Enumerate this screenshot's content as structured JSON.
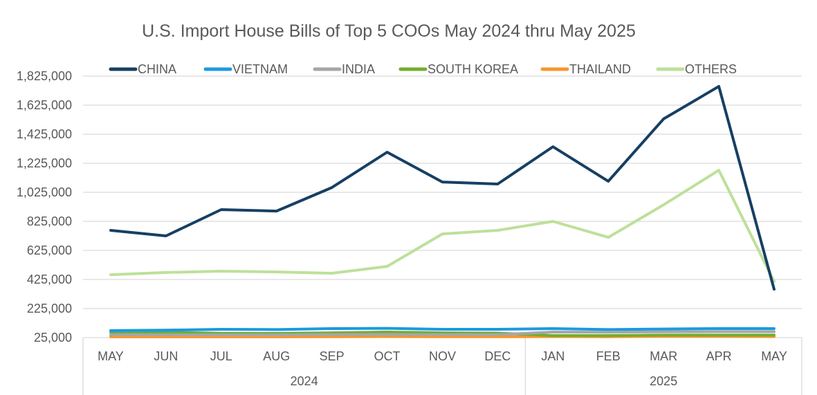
{
  "chart_data": {
    "type": "line",
    "title": "U.S. Import House Bills of Top 5 COOs May 2024 thru May 2025",
    "xlabel": "",
    "ylabel": "",
    "ylim": [
      25000,
      1825000
    ],
    "yticks": [
      25000,
      225000,
      425000,
      625000,
      825000,
      1025000,
      1225000,
      1425000,
      1625000,
      1825000
    ],
    "ytick_labels": [
      "25,000",
      "225,000",
      "425,000",
      "625,000",
      "825,000",
      "1,025,000",
      "1,225,000",
      "1,425,000",
      "1,625,000",
      "1,825,000"
    ],
    "grid": true,
    "legend_position": "top",
    "categories": [
      "MAY",
      "JUN",
      "JUL",
      "AUG",
      "SEP",
      "OCT",
      "NOV",
      "DEC",
      "JAN",
      "FEB",
      "MAR",
      "APR",
      "MAY"
    ],
    "category_groups": [
      {
        "label": "2024",
        "count": 8
      },
      {
        "label": "2025",
        "count": 5
      }
    ],
    "series": [
      {
        "name": "CHINA",
        "color": "#173f63",
        "values": [
          763000,
          725000,
          906000,
          896000,
          1058000,
          1301000,
          1096000,
          1082000,
          1339000,
          1101000,
          1530000,
          1754000,
          358000
        ]
      },
      {
        "name": "VIETNAM",
        "color": "#1a9ae0",
        "values": [
          73000,
          76000,
          82000,
          80000,
          87000,
          89000,
          82000,
          82000,
          87000,
          80000,
          84000,
          87000,
          87000
        ]
      },
      {
        "name": "INDIA",
        "color": "#a6a6a6",
        "values": [
          44000,
          44000,
          44000,
          44000,
          46000,
          46000,
          45000,
          45000,
          63000,
          62000,
          65000,
          66000,
          66000
        ]
      },
      {
        "name": "SOUTH KOREA",
        "color": "#72ae2e",
        "values": [
          61000,
          61000,
          55000,
          54000,
          58000,
          63000,
          58000,
          56000,
          39000,
          39000,
          42000,
          42000,
          42000
        ]
      },
      {
        "name": "THAILAND",
        "color": "#f7962b",
        "values": [
          30000,
          30000,
          30000,
          30000,
          31000,
          32000,
          31000,
          31000,
          32000,
          31000,
          34000,
          33000,
          32000
        ]
      },
      {
        "name": "OTHERS",
        "color": "#bde09a",
        "values": [
          458000,
          473000,
          482000,
          477000,
          468000,
          515000,
          739000,
          763000,
          825000,
          715000,
          939000,
          1177000,
          411000
        ]
      }
    ]
  }
}
